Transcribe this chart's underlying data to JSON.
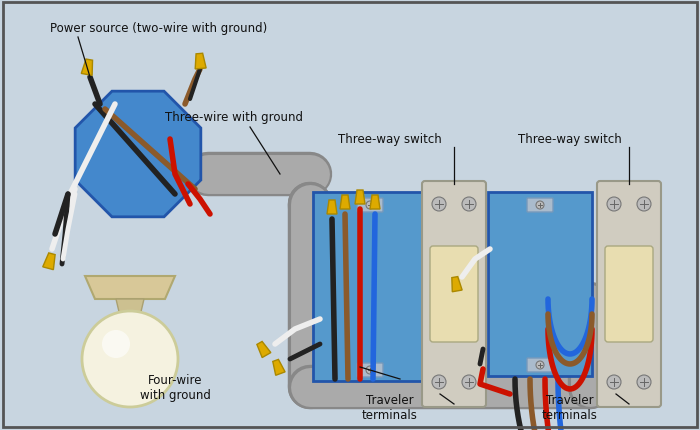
{
  "background_color": "#c8d5e0",
  "border_color": "#555555",
  "labels": {
    "power_source": "Power source (two-wire with ground)",
    "three_wire": "Three-wire with ground",
    "four_wire": "Four-wire\nwith ground",
    "switch1_label": "Three-way switch",
    "switch2_label": "Three-way switch",
    "traveler1": "Traveler\nterminals",
    "traveler2": "Traveler\nterminals"
  },
  "wire_colors": {
    "black": "#222222",
    "white": "#eeeeee",
    "red": "#cc1100",
    "blue": "#2266dd",
    "brown": "#8B5A2B",
    "ground": "#ccaa00",
    "gray_conduit": "#aaaaaa",
    "conduit_dark": "#888888"
  },
  "box_colors": {
    "junction_box_fill": "#4488cc",
    "junction_box_edge": "#2255aa",
    "switch_box_fill": "#5599cc",
    "switch_box_edge": "#2255aa",
    "switch_body": "#d8cfa0",
    "switch_toggle": "#e8ddb0",
    "screw": "#bbbbbb"
  },
  "cap_color": "#ddaa00",
  "cap_edge": "#aa8800"
}
